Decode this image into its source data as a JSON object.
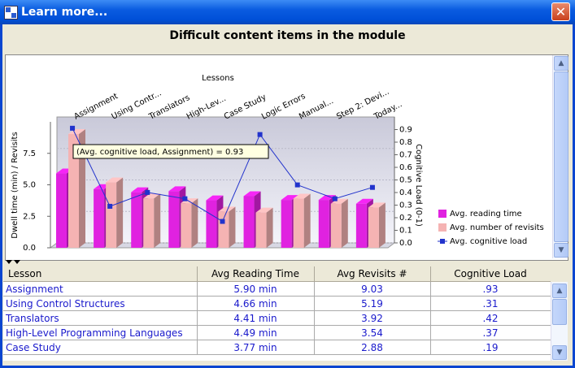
{
  "window": {
    "title": "Learn more..."
  },
  "header": {
    "title": "Difficult content items in the module"
  },
  "chart_data": {
    "type": "bar",
    "x_label": "Lessons",
    "y_label": "Dwell time (min) / Revisits",
    "y2_label": "Cognitive Load (0-1)",
    "tooltip": "(Avg. cognitive load, Assignment) = 0.93",
    "categories": [
      "Assignment",
      "Using Contr...",
      "Translators",
      "High-Lev...",
      "Case Study",
      "Logic Errors",
      "Manual...",
      "Step 2: Devi...",
      "Today..."
    ],
    "series": [
      {
        "name": "Avg. reading time",
        "color": "#e022e0",
        "values": [
          5.9,
          4.66,
          4.41,
          4.49,
          3.77,
          4.1,
          3.8,
          3.8,
          3.5
        ]
      },
      {
        "name": "Avg. number of revisits",
        "color": "#f5b3b3",
        "values": [
          9.03,
          5.19,
          3.92,
          3.54,
          2.88,
          2.8,
          3.9,
          3.5,
          3.2
        ]
      },
      {
        "name": "Avg. cognitive load",
        "color": "#2233cc",
        "type": "line",
        "axis": "y2",
        "values": [
          0.93,
          0.31,
          0.42,
          0.37,
          0.19,
          0.88,
          0.48,
          0.37,
          0.46
        ]
      }
    ],
    "ylim": [
      0,
      10
    ],
    "yticks": [
      {
        "value": 0,
        "label": "0.0"
      },
      2.5,
      {
        "value": 5,
        "label": "5.0"
      },
      7.5
    ],
    "y2lim": [
      0,
      1
    ],
    "y2ticks": [
      {
        "value": 0,
        "label": "0.0"
      },
      0.1,
      0.2,
      0.3,
      0.4,
      0.5,
      0.6,
      0.7,
      0.8,
      0.9
    ],
    "grid": true,
    "legend": "bottom-right"
  },
  "table": {
    "columns": [
      "Lesson",
      "Avg Reading Time",
      "Avg Revisits #",
      "Cognitive Load"
    ],
    "rows": [
      [
        "Assignment",
        "5.90 min",
        "9.03",
        ".93"
      ],
      [
        "Using Control Structures",
        "4.66 min",
        "5.19",
        ".31"
      ],
      [
        "Translators",
        "4.41 min",
        "3.92",
        ".42"
      ],
      [
        "High-Level Programming Languages",
        "4.49 min",
        "3.54",
        ".37"
      ],
      [
        "Case Study",
        "3.77 min",
        "2.88",
        ".19"
      ]
    ]
  }
}
